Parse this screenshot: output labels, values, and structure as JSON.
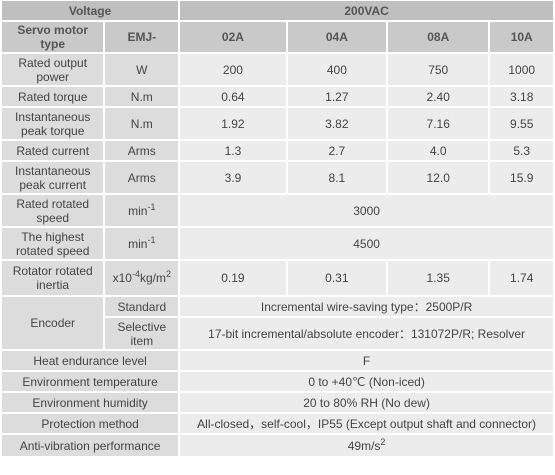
{
  "table": {
    "voltage": {
      "label": "Voltage",
      "value": "200VAC"
    },
    "header": {
      "label": "Servo motor type",
      "unit": "EMJ-",
      "models": [
        "02A",
        "04A",
        "08A",
        "10A"
      ]
    },
    "model_rows": [
      {
        "label": "Rated output power",
        "unit": "W",
        "values": [
          "200",
          "400",
          "750",
          "1000"
        ]
      },
      {
        "label": "Rated torque",
        "unit": "N.m",
        "values": [
          "0.64",
          "1.27",
          "2.40",
          "3.18"
        ]
      },
      {
        "label": "Instantaneous peak torque",
        "unit": "N.m",
        "values": [
          "1.92",
          "3.82",
          "7.16",
          "9.55"
        ]
      },
      {
        "label": "Rated current",
        "unit": "Arms",
        "values": [
          "1.3",
          "2.7",
          "4.0",
          "5.3"
        ]
      },
      {
        "label": "Instantaneous peak current",
        "unit": "Arms",
        "values": [
          "3.9",
          "8.1",
          "12.0",
          "15.9"
        ]
      }
    ],
    "speed_rows": [
      {
        "label": "Rated rotated speed",
        "unit": {
          "base": "min",
          "sup": "-1"
        },
        "value": "3000"
      },
      {
        "label": "The highest rotated speed",
        "unit": {
          "base": "min",
          "sup": "-1"
        },
        "value": "4500"
      }
    ],
    "inertia": {
      "label": "Rotator rotated inertia",
      "unit": {
        "base": "x10",
        "sup": "-4",
        "base2": "kg/m",
        "sup2": "2"
      },
      "values": [
        "0.19",
        "0.31",
        "1.35",
        "1.74"
      ]
    },
    "encoder": {
      "label": "Encoder",
      "standard": {
        "label": "Standard",
        "value": "Incremental wire-saving type：2500P/R"
      },
      "selective": {
        "label": "Selective item",
        "value": "17-bit incremental/absolute encoder：131072P/R; Resolver"
      }
    },
    "spec_rows": [
      {
        "label": "Heat endurance level",
        "value": "F"
      },
      {
        "label": "Environment temperature",
        "value": "0 to +40℃ (Non-iced)"
      },
      {
        "label": "Environment humidity",
        "value": "20 to 80% RH (No dew)"
      },
      {
        "label": "Protection method",
        "value": "All-closed，self-cool，IP55 (Except output shaft and connector)"
      }
    ],
    "vibration": {
      "label": "Anti-vibration performance",
      "value": {
        "base": "49m/s",
        "sup": "2"
      }
    }
  }
}
